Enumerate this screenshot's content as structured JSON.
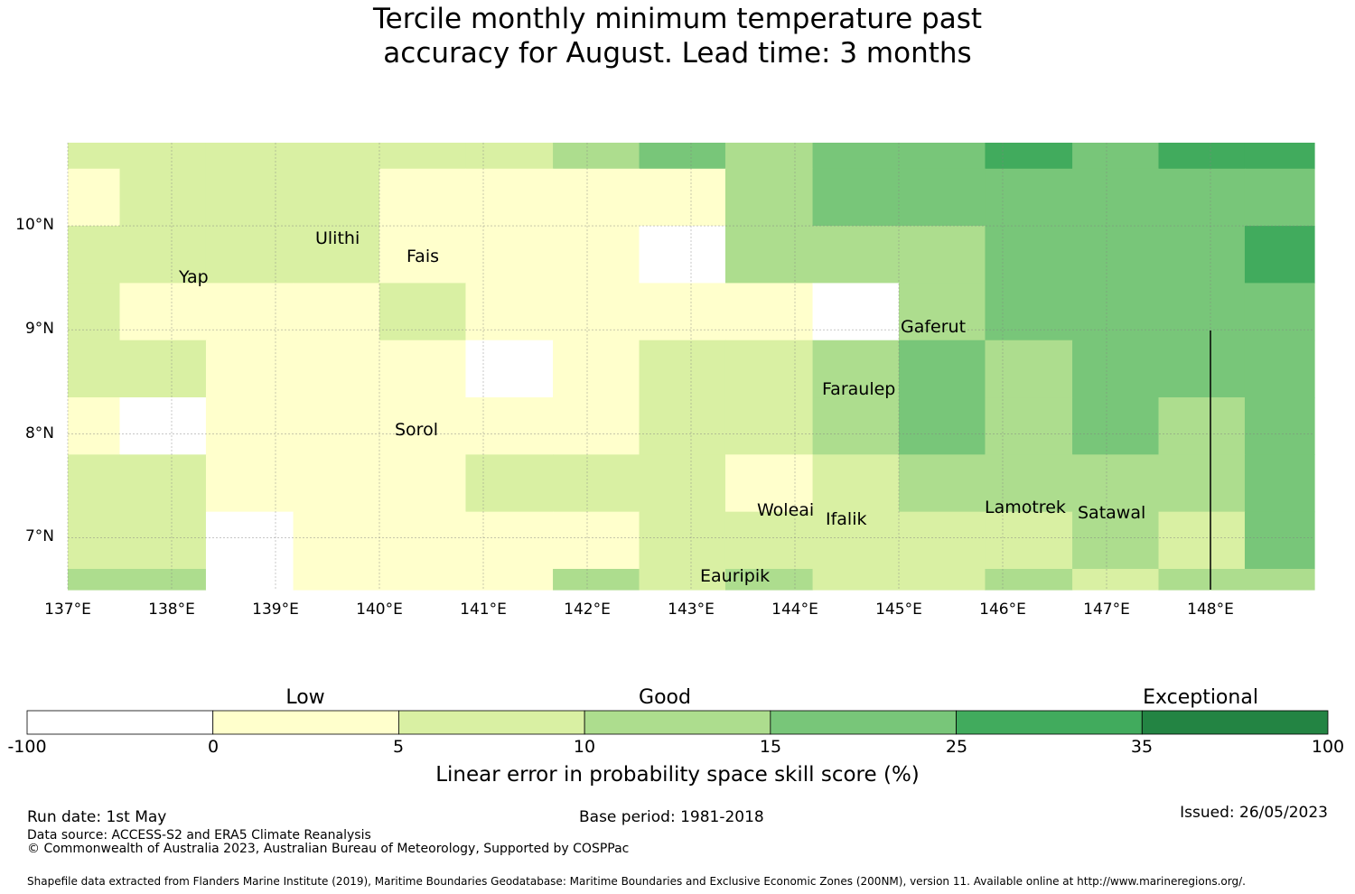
{
  "title": {
    "line1": "Tercile monthly minimum temperature past",
    "line2": "accuracy for August. Lead time: 3 months"
  },
  "map": {
    "lon_range": [
      137.0,
      149.0
    ],
    "lat_range": [
      6.5,
      10.8
    ],
    "lon_ticks": [
      "137°E",
      "138°E",
      "139°E",
      "140°E",
      "141°E",
      "142°E",
      "143°E",
      "144°E",
      "145°E",
      "146°E",
      "147°E",
      "148°E"
    ],
    "lat_ticks": [
      "10°N",
      "9°N",
      "8°N",
      "7°N"
    ],
    "grid": true,
    "places": [
      {
        "name": "Ulithi",
        "lon": 139.8,
        "lat": 9.95
      },
      {
        "name": "Fais",
        "lon": 140.5,
        "lat": 9.75
      },
      {
        "name": "Yap",
        "lon": 138.1,
        "lat": 9.5
      },
      {
        "name": "Gaferut",
        "lon": 145.3,
        "lat": 9.05
      },
      {
        "name": "Faraulep",
        "lon": 144.5,
        "lat": 8.45
      },
      {
        "name": "Sorol",
        "lon": 140.4,
        "lat": 8.05
      },
      {
        "name": "Woleai",
        "lon": 143.9,
        "lat": 7.35
      },
      {
        "name": "Ifalik",
        "lon": 144.5,
        "lat": 7.25
      },
      {
        "name": "Lamotrek",
        "lon": 146.3,
        "lat": 7.35
      },
      {
        "name": "Satawal",
        "lon": 147.0,
        "lat": 7.3
      },
      {
        "name": "Eauripik",
        "lon": 143.2,
        "lat": 6.7
      }
    ]
  },
  "chart_data": {
    "type": "heatmap",
    "x_edges": [
      137.0,
      137.5,
      138.33,
      139.17,
      140.0,
      140.83,
      141.67,
      142.5,
      143.33,
      144.17,
      145.0,
      145.83,
      146.67,
      147.5,
      148.33,
      149.0
    ],
    "y_edges": [
      10.8,
      10.55,
      10.0,
      9.45,
      8.9,
      8.35,
      7.8,
      7.25,
      6.7,
      6.5
    ],
    "categories": [
      [
        2,
        2,
        2,
        2,
        2,
        2,
        3,
        4,
        3,
        4,
        4,
        5,
        4,
        5,
        5
      ],
      [
        1,
        2,
        2,
        2,
        1,
        1,
        1,
        1,
        3,
        4,
        4,
        4,
        4,
        4,
        4
      ],
      [
        2,
        2,
        2,
        2,
        1,
        1,
        1,
        0,
        3,
        3,
        3,
        4,
        4,
        4,
        5
      ],
      [
        2,
        1,
        1,
        1,
        2,
        1,
        1,
        1,
        1,
        0,
        3,
        4,
        4,
        4,
        4
      ],
      [
        2,
        2,
        1,
        1,
        1,
        0,
        1,
        2,
        2,
        3,
        4,
        3,
        4,
        4,
        4
      ],
      [
        1,
        0,
        1,
        1,
        1,
        1,
        1,
        2,
        2,
        3,
        4,
        3,
        4,
        3,
        4
      ],
      [
        2,
        2,
        1,
        1,
        1,
        2,
        2,
        2,
        1,
        2,
        3,
        3,
        3,
        3,
        4
      ],
      [
        2,
        2,
        0,
        1,
        1,
        1,
        1,
        2,
        2,
        2,
        2,
        2,
        3,
        2,
        4
      ],
      [
        3,
        3,
        0,
        1,
        1,
        1,
        3,
        2,
        3,
        2,
        2,
        3,
        2,
        3,
        3
      ]
    ],
    "xlabel": "",
    "ylabel": ""
  },
  "colorbar": {
    "colors": [
      "#ffffff",
      "#ffffcc",
      "#d9f0a3",
      "#addd8e",
      "#78c679",
      "#41ab5d",
      "#238443"
    ],
    "tick_labels": [
      "-100",
      "0",
      "5",
      "10",
      "15",
      "25",
      "35",
      "100"
    ],
    "category_labels": [
      "Low",
      "Good",
      "Exceptional"
    ],
    "title": "Linear error in probability space skill score (%)"
  },
  "footer": {
    "run_date": "Run date: 1st May",
    "base_period": "Base period: 1981-2018",
    "issued": "Issued: 26/05/2023",
    "data_source": "Data source: ACCESS-S2 and ERA5 Climate Reanalysis",
    "copyright": "© Commonwealth of Australia 2023, Australian Bureau of Meteorology, Supported by COSPPac",
    "shapefile": "Shapefile data extracted from Flanders Marine Institute (2019), Maritime Boundaries Geodatabase: Maritime Boundaries and Exclusive Economic Zones (200NM), version 11. Available online at http://www.marineregions.org/."
  }
}
